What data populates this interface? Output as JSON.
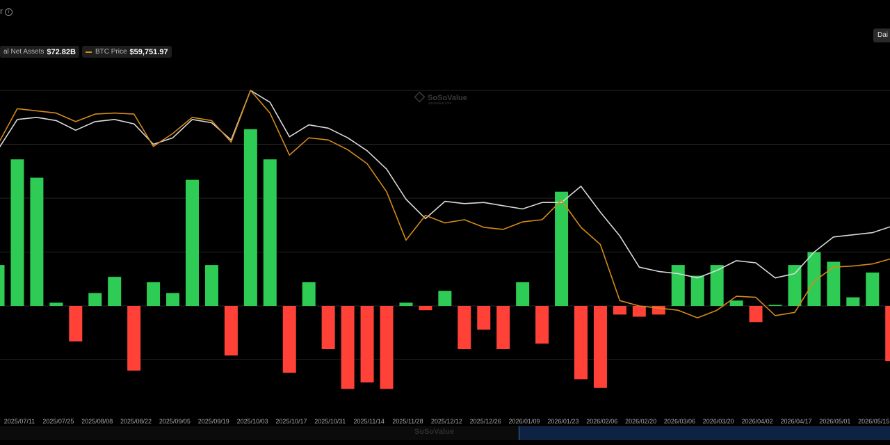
{
  "header": {
    "title_fragment": "r"
  },
  "legend": {
    "net_assets_label": "al Net Assets",
    "net_assets_value": "$72.82B",
    "btc_label": "BTC Price",
    "btc_value": "$59,751.97"
  },
  "period_button": "Dai",
  "watermark": {
    "brand": "SoSoValue",
    "sub": "sosovalue.com"
  },
  "colors": {
    "inflow": "#2ecc55",
    "outflow": "#ff4137",
    "net_assets_line": "#d9d9d9",
    "btc_line": "#d58a1a",
    "grid": "#262626"
  },
  "chart_data": {
    "type": "bar",
    "x_ticks": [
      "2025/07/11",
      "2025/07/25",
      "2025/08/08",
      "2025/08/22",
      "2025/09/05",
      "2025/09/19",
      "2025/10/03",
      "2025/10/17",
      "2025/10/31",
      "2025/11/14",
      "2025/11/28",
      "2025/12/12",
      "2025/12/26",
      "2026/01/09",
      "2026/01/23",
      "2026/02/06",
      "2026/02/20",
      "2026/03/06",
      "2026/03/20",
      "2026/04/02",
      "2026/04/17",
      "2026/05/01",
      "2026/05/15"
    ],
    "series": [
      {
        "kind": "bar",
        "values": [
          38,
          136,
          119,
          3,
          -33,
          12,
          27,
          -60,
          22,
          12,
          117,
          38,
          -46,
          164,
          136,
          -62,
          22,
          -40,
          -77,
          -71,
          -77,
          3,
          -4,
          14,
          -40,
          -22,
          -40,
          22,
          -35,
          106,
          -68,
          -76,
          -8,
          -10,
          -8,
          38,
          28,
          38,
          5,
          -15,
          1,
          38,
          50,
          41,
          8,
          31,
          -51,
          -64
        ]
      },
      {
        "kind": "line",
        "name": "al Net Assets",
        "values": [
          145,
          173,
          175,
          172,
          163,
          171,
          173,
          169,
          150,
          156,
          173,
          170,
          154,
          200,
          189,
          157,
          168,
          165,
          156,
          144,
          127,
          99,
          81,
          97,
          95,
          96,
          93,
          90,
          96,
          96,
          111,
          87,
          65,
          36,
          32,
          30,
          26,
          33,
          42,
          40,
          26,
          30,
          50,
          64,
          66,
          68,
          74,
          69,
          57
        ]
      },
      {
        "kind": "line",
        "name": "BTC Price",
        "values": [
          150,
          183,
          181,
          179,
          171,
          178,
          179,
          178,
          148,
          160,
          175,
          172,
          152,
          200,
          179,
          140,
          156,
          154,
          145,
          132,
          106,
          61,
          84,
          77,
          80,
          73,
          71,
          78,
          80,
          98,
          73,
          57,
          5,
          0,
          -2,
          -4,
          -11,
          -4,
          9,
          8,
          -9,
          -6,
          23,
          36,
          37,
          39,
          44,
          39,
          26
        ]
      }
    ],
    "ylim_bars": [
      -100,
      200
    ],
    "grid": true,
    "legend_position": "top-left"
  }
}
